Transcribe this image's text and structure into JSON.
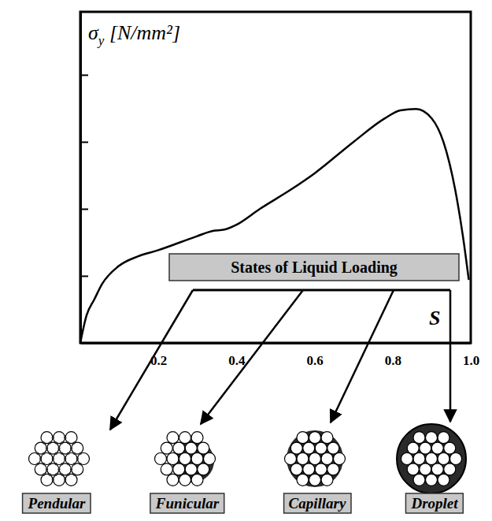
{
  "chart_data": {
    "type": "line",
    "ylabel": "σy [N/mm²]",
    "xlabel": "S",
    "x": [
      0,
      0.016,
      0.036,
      0.056,
      0.097,
      0.147,
      0.198,
      0.298,
      0.339,
      0.369,
      0.399,
      0.46,
      0.54,
      0.6,
      0.7,
      0.78,
      0.82,
      0.86,
      0.9,
      0.93,
      0.96,
      0.98,
      0.995
    ],
    "values": [
      0,
      0.41,
      0.65,
      0.88,
      1.14,
      1.29,
      1.38,
      1.59,
      1.67,
      1.69,
      1.76,
      2.0,
      2.29,
      2.53,
      3.0,
      3.35,
      3.47,
      3.49,
      3.35,
      3.0,
      2.29,
      1.59,
      0.94
    ],
    "color": "#000000",
    "xlim": [
      0,
      1
    ],
    "xticks": [
      0.2,
      0.4,
      0.6,
      0.8,
      {
        "value": 1,
        "label": "1.0"
      }
    ],
    "ylim": [
      0,
      4.94
    ],
    "yticks": [
      1,
      2,
      3,
      4
    ],
    "tick_labels": "x",
    "annotations": [
      "States of Liquid Loading",
      "Pendular",
      "Funicular",
      "Capillary",
      "Droplet"
    ]
  }
}
